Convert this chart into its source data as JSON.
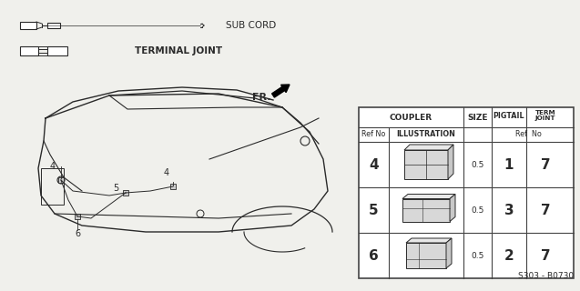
{
  "bg_color": "#f0f0ec",
  "part_code": "S303 - B0730",
  "sub_cord_label": "SUB CORD",
  "terminal_joint_label": "TERMINAL JOINT",
  "fr_label": "FR.",
  "table": {
    "rows": [
      {
        "ref": "4",
        "size": "0.5",
        "pigtail": "1",
        "term_joint": "7"
      },
      {
        "ref": "5",
        "size": "0.5",
        "pigtail": "3",
        "term_joint": "7"
      },
      {
        "ref": "6",
        "size": "0.5",
        "pigtail": "2",
        "term_joint": "7"
      }
    ]
  },
  "line_color": "#2a2a2a",
  "table_border": "#444444"
}
